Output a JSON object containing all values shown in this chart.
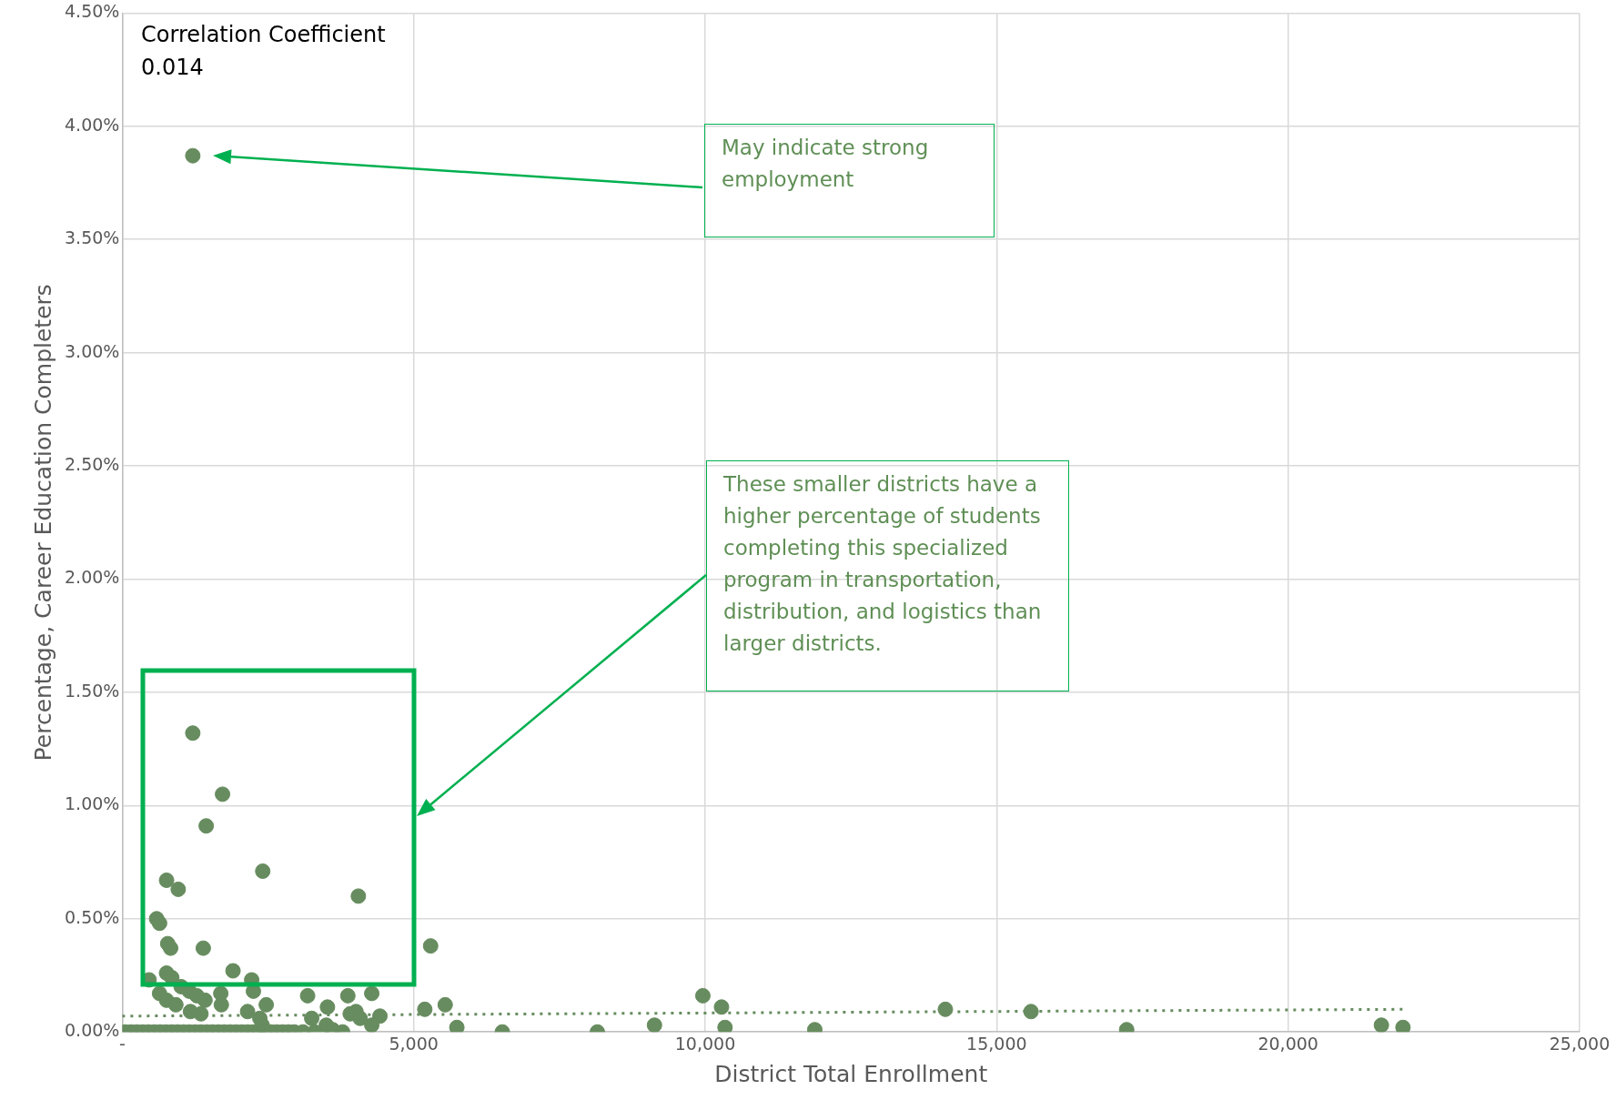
{
  "chart_data": {
    "type": "scatter",
    "xlabel": "District Total Enrollment",
    "ylabel": "Percentage, Career Education Completers",
    "xlim": [
      0,
      25000
    ],
    "xticks": [
      {
        "value": 0,
        "label": "-"
      },
      {
        "value": 5000,
        "label": "5,000"
      },
      {
        "value": 10000,
        "label": "10,000"
      },
      {
        "value": 15000,
        "label": "15,000"
      },
      {
        "value": 20000,
        "label": "20,000"
      },
      {
        "value": 25000,
        "label": "25,000"
      }
    ],
    "ylim": [
      0,
      4.5
    ],
    "yticks": [
      {
        "value": 0,
        "label": "0.00%"
      },
      {
        "value": 0.5,
        "label": "0.50%"
      },
      {
        "value": 1,
        "label": "1.00%"
      },
      {
        "value": 1.5,
        "label": "1.50%"
      },
      {
        "value": 2,
        "label": "2.00%"
      },
      {
        "value": 2.5,
        "label": "2.50%"
      },
      {
        "value": 3,
        "label": "3.00%"
      },
      {
        "value": 3.5,
        "label": "3.50%"
      },
      {
        "value": 4,
        "label": "4.00%"
      },
      {
        "value": 4.5,
        "label": "4.50%"
      }
    ],
    "grid": true,
    "legend": false,
    "marker": "circle",
    "series": [
      {
        "color": "#678c5f",
        "x": [
          1210,
          1210,
          1720,
          1440,
          2410,
          760,
          960,
          4050,
          590,
          640,
          780,
          830,
          1390,
          5290,
          460,
          760,
          1900,
          2220,
          850,
          1010,
          1150,
          2250,
          1280,
          1420,
          640,
          760,
          920,
          1690,
          1700,
          2470,
          1170,
          1350,
          2150,
          3180,
          3870,
          4280,
          3520,
          4010,
          3910,
          4420,
          5190,
          5540,
          3250,
          4080,
          4280,
          5740,
          6520,
          8150,
          9130,
          9960,
          10280,
          10340,
          11880,
          14120,
          15590,
          17230,
          21600,
          21970,
          2360,
          2400,
          3500,
          3610,
          3780,
          50,
          150,
          250,
          350,
          450,
          550,
          650,
          750,
          850,
          950,
          1050,
          1150,
          1250,
          1350,
          1450,
          1550,
          1650,
          1750,
          1850,
          1950,
          2050,
          2150,
          2250,
          2350,
          2450,
          2550,
          2650,
          2750,
          2850,
          2950,
          3100,
          3300
        ],
        "values": [
          3.87,
          1.32,
          1.05,
          0.91,
          0.71,
          0.67,
          0.63,
          0.6,
          0.5,
          0.48,
          0.39,
          0.37,
          0.37,
          0.38,
          0.23,
          0.26,
          0.27,
          0.23,
          0.24,
          0.2,
          0.18,
          0.18,
          0.16,
          0.14,
          0.17,
          0.14,
          0.12,
          0.17,
          0.12,
          0.12,
          0.09,
          0.08,
          0.09,
          0.16,
          0.16,
          0.17,
          0.11,
          0.09,
          0.08,
          0.07,
          0.1,
          0.12,
          0.06,
          0.06,
          0.03,
          0.02,
          0,
          0,
          0.03,
          0.16,
          0.11,
          0.02,
          0.01,
          0.1,
          0.09,
          0.01,
          0.03,
          0.02,
          0.06,
          0.03,
          0.03,
          0.01,
          0,
          0,
          0,
          0,
          0,
          0,
          0,
          0,
          0,
          0,
          0,
          0,
          0,
          0,
          0,
          0,
          0,
          0,
          0,
          0,
          0,
          0,
          0,
          0,
          0,
          0,
          0,
          0,
          0,
          0,
          0,
          0,
          0
        ]
      },
      {
        "type": "line",
        "color": "#678c5f",
        "line_style": "dotted",
        "marker": "none",
        "x": [
          0,
          21970
        ],
        "values": [
          0.07,
          0.1
        ]
      }
    ],
    "annotations": [
      "Correlation Coefficient\n0.014",
      "May indicate strong employment",
      "These smaller districts have a higher percentage of students completing this specialized program in transportation, distribution, and logistics than larger districts."
    ]
  }
}
